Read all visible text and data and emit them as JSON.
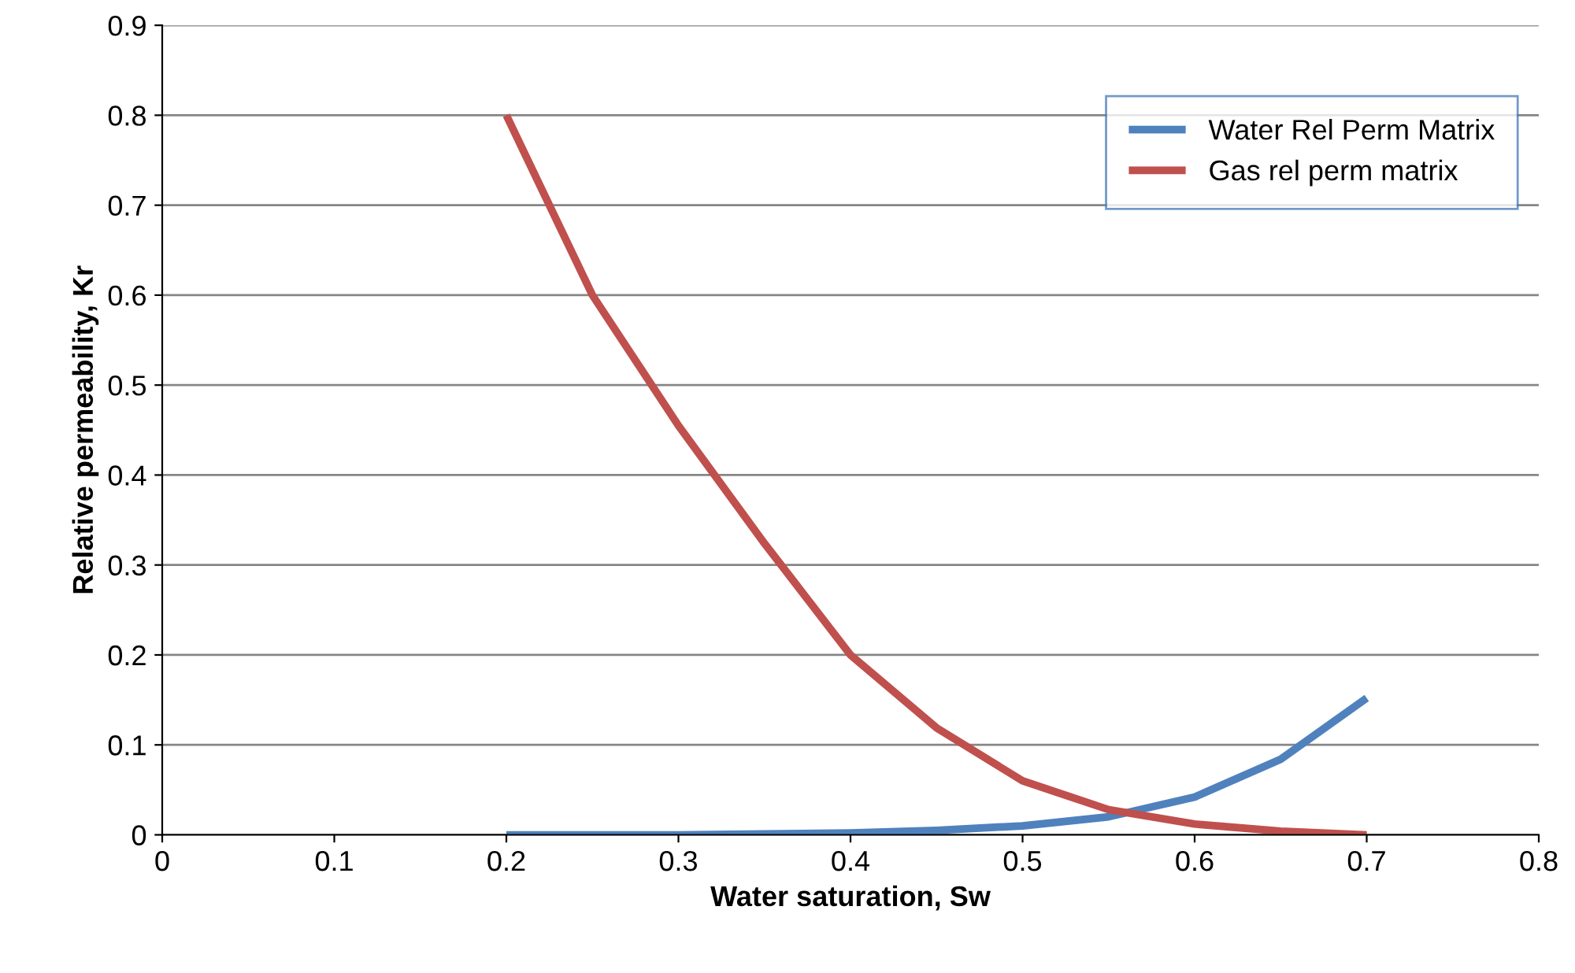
{
  "chart_data": {
    "type": "line",
    "xlabel": "Water saturation, Sw",
    "ylabel": "Relative permeability, Kr",
    "series": [
      {
        "name": "Water Rel Perm Matrix",
        "color": "#4f81bd",
        "x": [
          0.2,
          0.25,
          0.3,
          0.35,
          0.4,
          0.45,
          0.5,
          0.55,
          0.6,
          0.65,
          0.7
        ],
        "values": [
          0,
          0,
          0,
          0.001,
          0.002,
          0.005,
          0.01,
          0.02,
          0.042,
          0.084,
          0.152
        ]
      },
      {
        "name": "Gas rel perm matrix",
        "color": "#c0504d",
        "x": [
          0.2,
          0.25,
          0.3,
          0.35,
          0.4,
          0.45,
          0.5,
          0.55,
          0.6,
          0.65,
          0.7
        ],
        "values": [
          0.8,
          0.6,
          0.455,
          0.324,
          0.2,
          0.119,
          0.06,
          0.028,
          0.012,
          0.004,
          0
        ]
      }
    ],
    "xlim": [
      0,
      0.8
    ],
    "xticks": [
      0,
      0.1,
      0.2,
      0.3,
      0.4,
      0.5,
      0.6,
      0.7,
      0.8
    ],
    "ylim": [
      0,
      0.9
    ],
    "yticks": [
      0,
      0.1,
      0.2,
      0.3,
      0.4,
      0.5,
      0.6,
      0.7,
      0.8,
      0.9
    ],
    "grid": "y",
    "legend": "top right",
    "marker": "none",
    "line_style": "solid"
  }
}
